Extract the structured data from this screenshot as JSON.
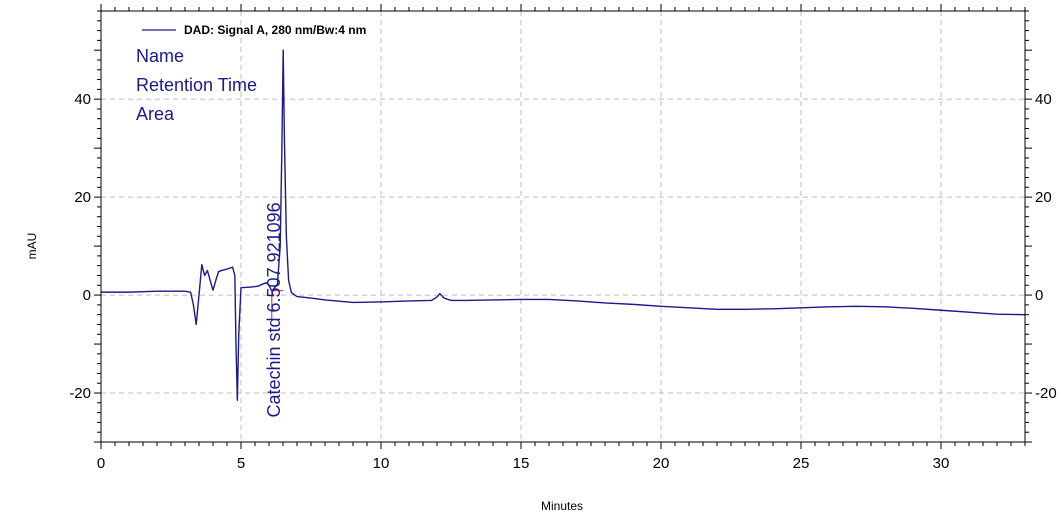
{
  "chart_data": {
    "type": "line",
    "xlabel": "Minutes",
    "ylabel": "mAU",
    "xlim": [
      0,
      33
    ],
    "ylim": [
      -30,
      58
    ],
    "x_ticks": [
      0,
      5,
      10,
      15,
      20,
      25,
      30
    ],
    "y_ticks": [
      -20,
      0,
      20,
      40
    ],
    "grid": true,
    "legend_position": "top-left",
    "series": [
      {
        "name": "DAD: Signal A, 280 nm/Bw:4 nm",
        "color": "#1a1a8c",
        "points": [
          [
            0,
            0.6
          ],
          [
            1.0,
            0.6
          ],
          [
            1.5,
            0.7
          ],
          [
            2.0,
            0.8
          ],
          [
            2.5,
            0.8
          ],
          [
            3.0,
            0.8
          ],
          [
            3.2,
            0.6
          ],
          [
            3.3,
            -2.0
          ],
          [
            3.4,
            -6.0
          ],
          [
            3.5,
            0.0
          ],
          [
            3.6,
            6.2
          ],
          [
            3.7,
            4.0
          ],
          [
            3.8,
            5.0
          ],
          [
            3.9,
            3.0
          ],
          [
            4.0,
            1.0
          ],
          [
            4.1,
            3.0
          ],
          [
            4.2,
            4.8
          ],
          [
            4.3,
            5.0
          ],
          [
            4.5,
            5.3
          ],
          [
            4.7,
            5.7
          ],
          [
            4.78,
            4.0
          ],
          [
            4.82,
            -10.0
          ],
          [
            4.87,
            -21.5
          ],
          [
            4.92,
            -8.0
          ],
          [
            5.0,
            1.5
          ],
          [
            5.3,
            1.6
          ],
          [
            5.6,
            1.8
          ],
          [
            5.8,
            2.3
          ],
          [
            5.9,
            2.5
          ],
          [
            6.0,
            2.0
          ],
          [
            6.1,
            0.8
          ],
          [
            6.2,
            1.5
          ],
          [
            6.3,
            2.2
          ],
          [
            6.4,
            10.0
          ],
          [
            6.46,
            30.0
          ],
          [
            6.507,
            50.0
          ],
          [
            6.55,
            32.0
          ],
          [
            6.62,
            12.0
          ],
          [
            6.7,
            3.0
          ],
          [
            6.8,
            0.5
          ],
          [
            7.0,
            -0.3
          ],
          [
            7.5,
            -0.6
          ],
          [
            8.0,
            -1.0
          ],
          [
            9.0,
            -1.5
          ],
          [
            10.0,
            -1.4
          ],
          [
            11.0,
            -1.2
          ],
          [
            11.8,
            -1.1
          ],
          [
            12.0,
            -0.4
          ],
          [
            12.1,
            0.3
          ],
          [
            12.25,
            -0.6
          ],
          [
            12.5,
            -1.1
          ],
          [
            13.0,
            -1.1
          ],
          [
            14.0,
            -1.0
          ],
          [
            15.0,
            -0.9
          ],
          [
            16.0,
            -0.9
          ],
          [
            17.0,
            -1.2
          ],
          [
            18.0,
            -1.6
          ],
          [
            19.0,
            -1.9
          ],
          [
            20.0,
            -2.3
          ],
          [
            21.0,
            -2.6
          ],
          [
            22.0,
            -2.9
          ],
          [
            23.0,
            -2.9
          ],
          [
            24.0,
            -2.8
          ],
          [
            25.0,
            -2.6
          ],
          [
            26.0,
            -2.4
          ],
          [
            27.0,
            -2.3
          ],
          [
            28.0,
            -2.4
          ],
          [
            29.0,
            -2.7
          ],
          [
            30.0,
            -3.1
          ],
          [
            31.0,
            -3.5
          ],
          [
            32.0,
            -3.9
          ],
          [
            33.0,
            -4.0
          ]
        ]
      }
    ],
    "info_fields": [
      "Name",
      "Retention Time",
      "Area"
    ],
    "peaks": [
      {
        "label": "Catechin std  6.507  921096",
        "name": "Catechin std",
        "retention_time": 6.507,
        "area": 921096,
        "start": 6.1
      }
    ]
  }
}
